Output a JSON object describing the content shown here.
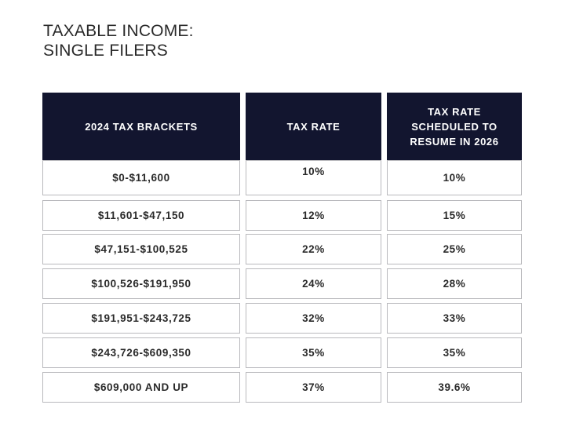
{
  "title_lines": [
    "TAXABLE INCOME:",
    "SINGLE FILERS"
  ],
  "chart_data": {
    "type": "table",
    "title": "TAXABLE INCOME: SINGLE FILERS",
    "columns": [
      "2024 TAX BRACKETS",
      "TAX RATE",
      "TAX RATE SCHEDULED TO RESUME IN 2026"
    ],
    "rows": [
      [
        "$0-$11,600",
        "10%",
        "10%"
      ],
      [
        "$11,601-$47,150",
        "12%",
        "15%"
      ],
      [
        "$47,151-$100,525",
        "22%",
        "25%"
      ],
      [
        "$100,526-$191,950",
        "24%",
        "28%"
      ],
      [
        "$191,951-$243,725",
        "32%",
        "33%"
      ],
      [
        "$243,726-$609,350",
        "35%",
        "35%"
      ],
      [
        "$609,000 AND UP",
        "37%",
        "39.6%"
      ]
    ],
    "header_color": "#12152f"
  }
}
